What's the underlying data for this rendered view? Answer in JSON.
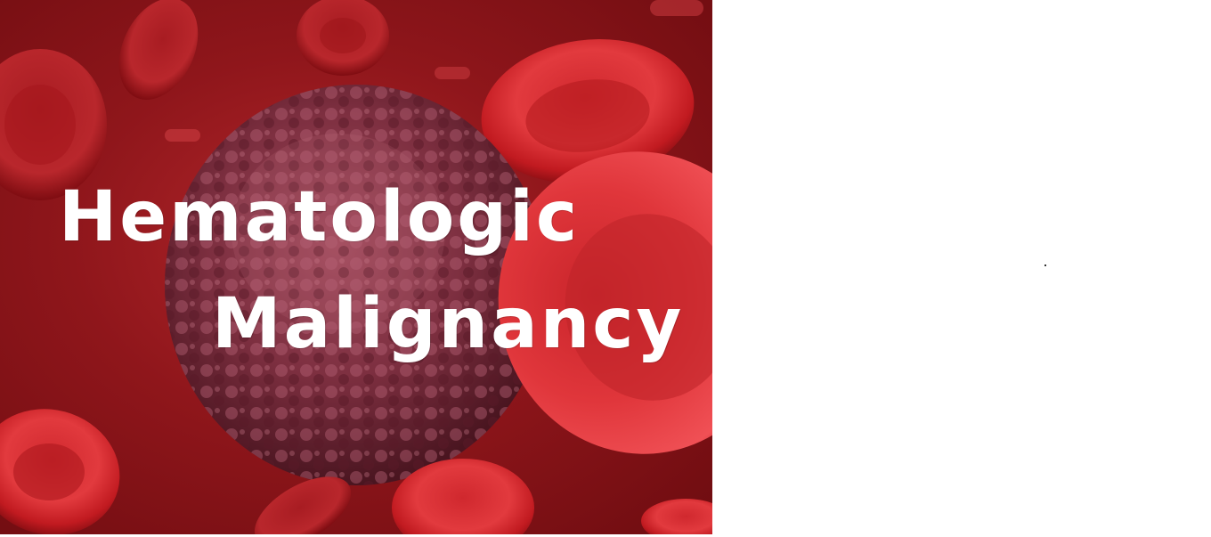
{
  "hero": {
    "title_line_1": "Hematologic",
    "title_line_2": "Malignancy"
  },
  "colors": {
    "background": "#ffffff",
    "blood_red": "#c21e24",
    "deep_red": "#7a0d12",
    "cell_purple": "#8a3a4f",
    "text": "#ffffff"
  }
}
